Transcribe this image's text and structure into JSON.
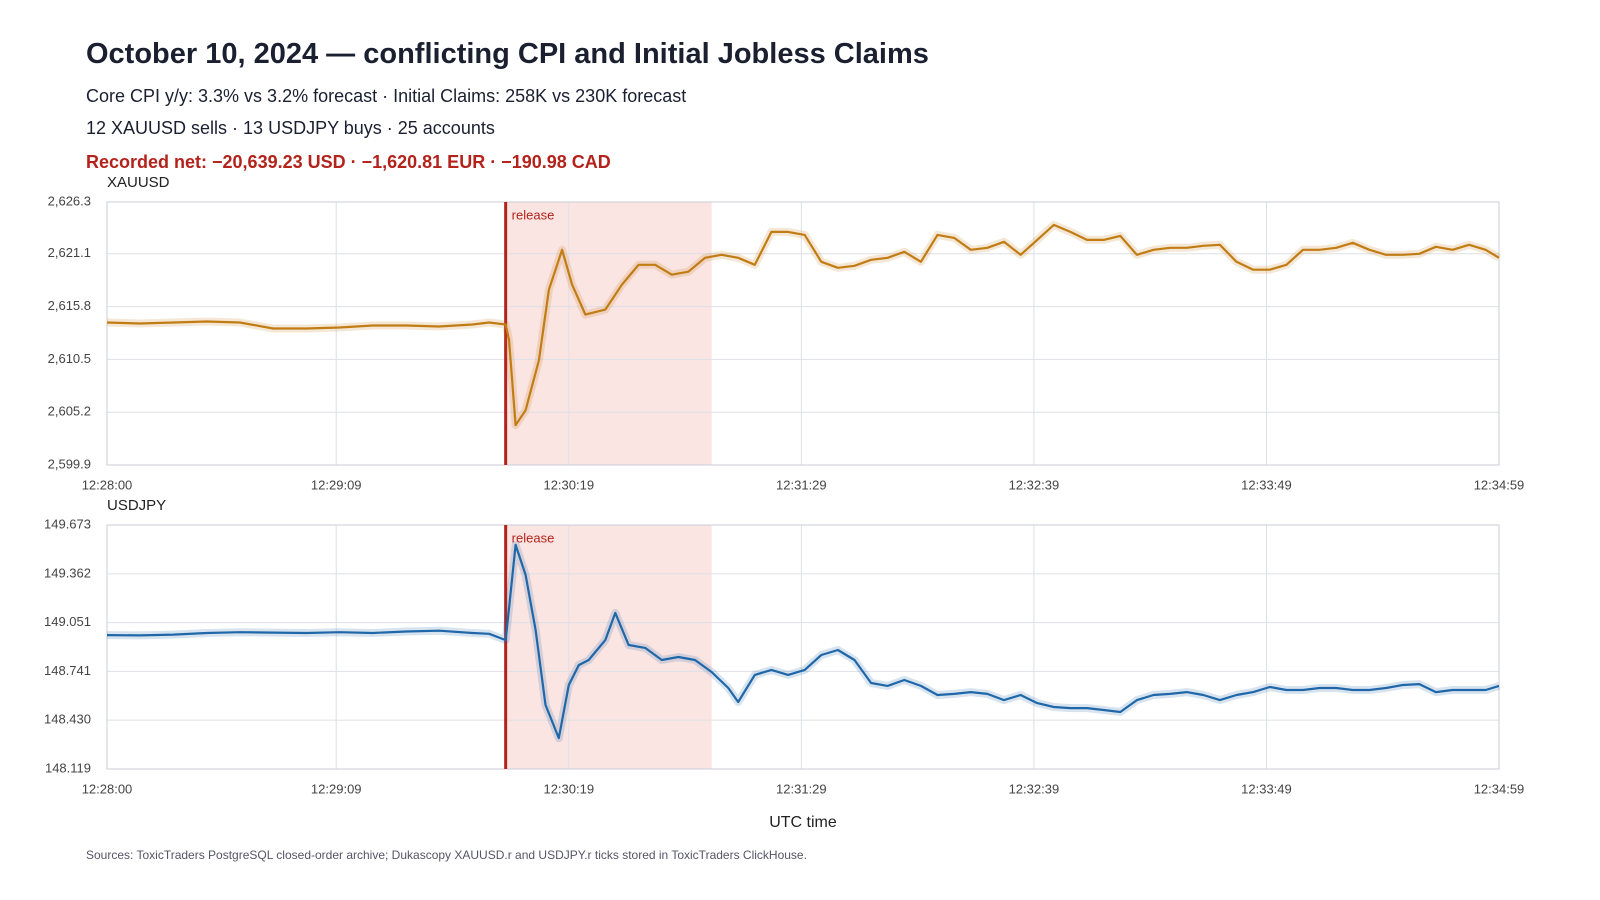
{
  "header": {
    "title": "October 10, 2024 — conflicting CPI and Initial Jobless Claims",
    "lines": [
      "Core CPI y/y: 3.3% vs 3.2% forecast · Initial Claims: 258K vs 230K forecast",
      "12 XAUUSD sells · 13 USDJPY buys · 25 accounts"
    ],
    "net": "Recorded net: −20,639.23 USD · −1,620.81 EUR · −190.98 CAD"
  },
  "chart_data": [
    {
      "type": "line",
      "title": "XAUUSD",
      "color": "#c27c14",
      "grid": true,
      "annotation": {
        "label": "release",
        "x": "12:30:00"
      },
      "shaded_range": [
        "12:30:00",
        "12:31:02"
      ],
      "xlim": [
        "12:28:00",
        "12:34:59"
      ],
      "xticks": [
        "12:28:00",
        "12:29:09",
        "12:30:19",
        "12:31:29",
        "12:32:39",
        "12:33:49",
        "12:34:59"
      ],
      "ylim": [
        2599.9,
        2626.3
      ],
      "yticks": [
        {
          "value": 2599.9,
          "label": "2,599.9"
        },
        {
          "value": 2605.2,
          "label": "2,605.2"
        },
        {
          "value": 2610.5,
          "label": "2,610.5"
        },
        {
          "value": 2615.8,
          "label": "2,615.8"
        },
        {
          "value": 2621.1,
          "label": "2,621.1"
        },
        {
          "value": 2626.3,
          "label": "2,626.3"
        }
      ],
      "x": [
        "12:28:00",
        "12:28:10",
        "12:28:20",
        "12:28:30",
        "12:28:40",
        "12:28:50",
        "12:29:00",
        "12:29:10",
        "12:29:20",
        "12:29:30",
        "12:29:40",
        "12:29:50",
        "12:29:55",
        "12:30:00",
        "12:30:01",
        "12:30:03",
        "12:30:06",
        "12:30:10",
        "12:30:13",
        "12:30:17",
        "12:30:20",
        "12:30:24",
        "12:30:30",
        "12:30:35",
        "12:30:40",
        "12:30:45",
        "12:30:50",
        "12:30:55",
        "12:31:00",
        "12:31:05",
        "12:31:10",
        "12:31:15",
        "12:31:20",
        "12:31:25",
        "12:31:30",
        "12:31:35",
        "12:31:40",
        "12:31:45",
        "12:31:50",
        "12:31:55",
        "12:32:00",
        "12:32:05",
        "12:32:10",
        "12:32:15",
        "12:32:20",
        "12:32:25",
        "12:32:30",
        "12:32:35",
        "12:32:40",
        "12:32:45",
        "12:32:50",
        "12:32:55",
        "12:33:00",
        "12:33:05",
        "12:33:10",
        "12:33:15",
        "12:33:20",
        "12:33:25",
        "12:33:30",
        "12:33:35",
        "12:33:40",
        "12:33:45",
        "12:33:50",
        "12:33:55",
        "12:34:00",
        "12:34:05",
        "12:34:10",
        "12:34:15",
        "12:34:20",
        "12:34:25",
        "12:34:30",
        "12:34:35",
        "12:34:40",
        "12:34:45",
        "12:34:50",
        "12:34:55",
        "12:34:59"
      ],
      "values": [
        2614.2,
        2614.1,
        2614.2,
        2614.3,
        2614.2,
        2613.6,
        2613.6,
        2613.7,
        2613.9,
        2613.9,
        2613.8,
        2614.0,
        2614.2,
        2614.0,
        2612.5,
        2603.9,
        2605.4,
        2610.4,
        2617.5,
        2621.5,
        2618.0,
        2615.0,
        2615.5,
        2618.0,
        2620.0,
        2620.0,
        2619.0,
        2619.3,
        2620.7,
        2621.0,
        2620.7,
        2620.0,
        2623.3,
        2623.3,
        2623.0,
        2620.3,
        2619.7,
        2619.9,
        2620.5,
        2620.7,
        2621.3,
        2620.3,
        2623.0,
        2622.7,
        2621.5,
        2621.7,
        2622.3,
        2621.0,
        2622.5,
        2624.0,
        2623.3,
        2622.5,
        2622.5,
        2622.9,
        2621.0,
        2621.5,
        2621.7,
        2621.7,
        2621.9,
        2622.0,
        2620.3,
        2619.5,
        2619.5,
        2620.0,
        2621.5,
        2621.5,
        2621.7,
        2622.2,
        2621.5,
        2621.0,
        2621.0,
        2621.1,
        2621.8,
        2621.5,
        2622.0,
        2621.5,
        2620.7
      ]
    },
    {
      "type": "line",
      "title": "USDJPY",
      "color": "#1f67a8",
      "grid": true,
      "xlabel": "UTC time",
      "annotation": {
        "label": "release",
        "x": "12:30:00"
      },
      "shaded_range": [
        "12:30:00",
        "12:31:02"
      ],
      "xlim": [
        "12:28:00",
        "12:34:59"
      ],
      "xticks": [
        "12:28:00",
        "12:29:09",
        "12:30:19",
        "12:31:29",
        "12:32:39",
        "12:33:49",
        "12:34:59"
      ],
      "ylim": [
        148.119,
        149.673
      ],
      "yticks": [
        148.119,
        {
          "value": 148.43,
          "label": "148.430"
        },
        148.741,
        149.051,
        149.362,
        149.673
      ],
      "x": [
        "12:28:00",
        "12:28:10",
        "12:28:20",
        "12:28:30",
        "12:28:40",
        "12:28:50",
        "12:29:00",
        "12:29:10",
        "12:29:20",
        "12:29:30",
        "12:29:40",
        "12:29:50",
        "12:29:55",
        "12:30:00",
        "12:30:03",
        "12:30:06",
        "12:30:09",
        "12:30:12",
        "12:30:16",
        "12:30:19",
        "12:30:22",
        "12:30:25",
        "12:30:30",
        "12:30:33",
        "12:30:37",
        "12:30:42",
        "12:30:47",
        "12:30:52",
        "12:30:57",
        "12:31:02",
        "12:31:07",
        "12:31:10",
        "12:31:15",
        "12:31:20",
        "12:31:25",
        "12:31:30",
        "12:31:35",
        "12:31:40",
        "12:31:45",
        "12:31:50",
        "12:31:55",
        "12:32:00",
        "12:32:05",
        "12:32:10",
        "12:32:15",
        "12:32:20",
        "12:32:25",
        "12:32:30",
        "12:32:35",
        "12:32:40",
        "12:32:45",
        "12:32:50",
        "12:32:55",
        "12:33:00",
        "12:33:05",
        "12:33:10",
        "12:33:15",
        "12:33:20",
        "12:33:25",
        "12:33:30",
        "12:33:35",
        "12:33:40",
        "12:33:45",
        "12:33:50",
        "12:33:55",
        "12:34:00",
        "12:34:05",
        "12:34:10",
        "12:34:15",
        "12:34:20",
        "12:34:25",
        "12:34:30",
        "12:34:35",
        "12:34:40",
        "12:34:45",
        "12:34:50",
        "12:34:55",
        "12:34:59"
      ],
      "values": [
        148.972,
        148.97,
        148.975,
        148.985,
        148.99,
        148.988,
        148.985,
        148.99,
        148.985,
        148.995,
        149.0,
        148.985,
        148.98,
        148.94,
        149.546,
        149.355,
        149.004,
        148.527,
        148.316,
        148.654,
        148.781,
        148.813,
        148.94,
        149.113,
        148.909,
        148.89,
        148.813,
        148.832,
        148.813,
        148.737,
        148.635,
        148.546,
        148.718,
        148.75,
        148.718,
        148.75,
        148.845,
        148.877,
        148.813,
        148.667,
        148.648,
        148.686,
        148.648,
        148.59,
        148.597,
        148.609,
        148.597,
        148.558,
        148.59,
        148.539,
        148.514,
        148.507,
        148.507,
        148.495,
        148.482,
        148.558,
        148.59,
        148.597,
        148.609,
        148.59,
        148.558,
        148.59,
        148.609,
        148.641,
        148.622,
        148.622,
        148.635,
        148.635,
        148.622,
        148.622,
        148.635,
        148.654,
        148.66,
        148.609,
        148.622,
        148.622,
        148.622,
        148.648
      ]
    }
  ],
  "source": "Sources: ToxicTraders PostgreSQL closed-order archive; Dukascopy XAUUSD.r and USDJPY.r ticks stored in ToxicTraders ClickHouse."
}
